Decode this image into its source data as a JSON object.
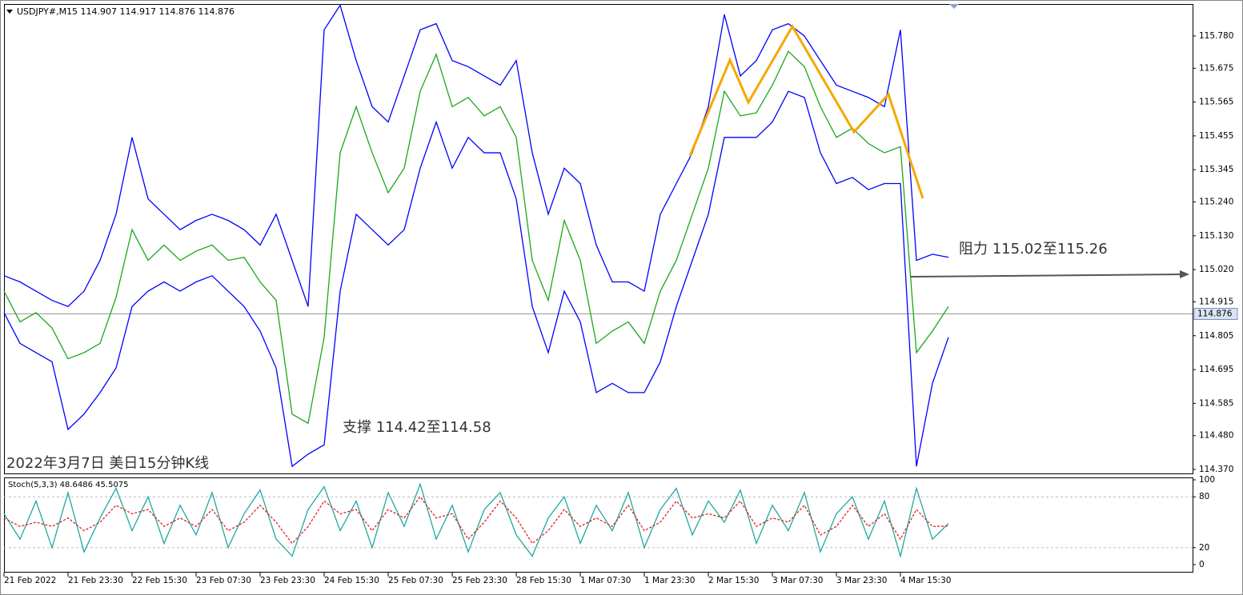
{
  "chart_data": [
    {
      "type": "line",
      "title": "USDJPY#,M15  114.907 114.917 114.876 114.876",
      "annotations": [
        "阻力 115.02至115.26",
        "支撑 114.42至114.58",
        "2022年3月7日 美日15分钟K线"
      ],
      "categories": [
        "21 Feb 2022",
        null,
        null,
        null,
        "21 Feb 23:30",
        null,
        null,
        null,
        "22 Feb 15:30",
        null,
        null,
        null,
        "23 Feb 07:30",
        null,
        null,
        null,
        "23 Feb 23:30",
        null,
        null,
        null,
        "24 Feb 15:30",
        null,
        null,
        null,
        "25 Feb 07:30",
        null,
        null,
        null,
        "25 Feb 23:30",
        null,
        null,
        null,
        "28 Feb 15:30",
        null,
        null,
        null,
        "1 Mar 07:30",
        null,
        null,
        null,
        "1 Mar 23:30",
        null,
        null,
        null,
        "2 Mar 15:30",
        null,
        null,
        null,
        "3 Mar 07:30",
        null,
        null,
        null,
        "3 Mar 23:30",
        null,
        null,
        null,
        "4 Mar 15:30",
        null,
        null,
        null
      ],
      "series": [
        {
          "color": "#1aa81a",
          "values": [
            114.95,
            114.85,
            114.88,
            114.83,
            114.73,
            114.75,
            114.78,
            114.93,
            115.15,
            115.05,
            115.1,
            115.05,
            115.08,
            115.1,
            115.05,
            115.06,
            114.98,
            114.92,
            114.55,
            114.52,
            114.8,
            115.4,
            115.55,
            115.4,
            115.27,
            115.35,
            115.6,
            115.72,
            115.55,
            115.58,
            115.52,
            115.55,
            115.45,
            115.05,
            114.92,
            115.18,
            115.05,
            114.78,
            114.82,
            114.85,
            114.78,
            114.95,
            115.05,
            115.2,
            115.35,
            115.6,
            115.52,
            115.53,
            115.62,
            115.73,
            115.68,
            115.55,
            115.45,
            115.48,
            115.43,
            115.4,
            115.42,
            114.75,
            114.82,
            114.9
          ]
        },
        {
          "color": "#0000ff",
          "values": [
            115.0,
            114.98,
            114.95,
            114.92,
            114.9,
            114.95,
            115.05,
            115.2,
            115.45,
            115.25,
            115.2,
            115.15,
            115.18,
            115.2,
            115.18,
            115.15,
            115.1,
            115.2,
            115.05,
            114.9,
            115.8,
            115.88,
            115.7,
            115.55,
            115.5,
            115.65,
            115.8,
            115.82,
            115.7,
            115.68,
            115.65,
            115.62,
            115.7,
            115.4,
            115.2,
            115.35,
            115.3,
            115.1,
            114.98,
            114.98,
            114.95,
            115.2,
            115.3,
            115.4,
            115.55,
            115.85,
            115.65,
            115.7,
            115.8,
            115.82,
            115.78,
            115.7,
            115.62,
            115.6,
            115.58,
            115.55,
            115.8,
            115.05,
            115.07,
            115.06
          ]
        },
        {
          "color": "#0000ff",
          "values": [
            114.88,
            114.78,
            114.75,
            114.72,
            114.5,
            114.55,
            114.62,
            114.7,
            114.9,
            114.95,
            114.98,
            114.95,
            114.98,
            115.0,
            114.95,
            114.9,
            114.82,
            114.7,
            114.38,
            114.42,
            114.45,
            114.95,
            115.2,
            115.15,
            115.1,
            115.15,
            115.35,
            115.5,
            115.35,
            115.45,
            115.4,
            115.4,
            115.25,
            114.9,
            114.75,
            114.95,
            114.85,
            114.62,
            114.65,
            114.62,
            114.62,
            114.72,
            114.9,
            115.05,
            115.2,
            115.45,
            115.45,
            115.45,
            115.5,
            115.6,
            115.58,
            115.4,
            115.3,
            115.32,
            115.28,
            115.3,
            115.3,
            114.38,
            114.65,
            114.8
          ]
        }
      ],
      "ylim": [
        114.357,
        115.884
      ],
      "yticks": [
        {
          "value": 115.78,
          "label": "115.780"
        },
        {
          "value": 115.675,
          "label": "115.675"
        },
        {
          "value": 115.565,
          "label": "115.565"
        },
        {
          "value": 115.455,
          "label": "115.455"
        },
        {
          "value": 115.345,
          "label": "115.345"
        },
        {
          "value": 115.24,
          "label": "115.240"
        },
        {
          "value": 115.13,
          "label": "115.130"
        },
        {
          "value": 115.02,
          "label": "115.020"
        },
        114.915,
        114.805,
        114.695,
        114.585,
        {
          "value": 114.48,
          "label": "114.480"
        },
        {
          "value": 114.37,
          "label": "114.370"
        }
      ],
      "current_price": 114.876,
      "grid": false
    },
    {
      "type": "line",
      "title": "Stoch(5,3,3) 48.6486 45.5075",
      "series": [
        {
          "color": "#20a8a0",
          "values": [
            60,
            30,
            75,
            20,
            85,
            15,
            55,
            90,
            40,
            80,
            25,
            70,
            35,
            85,
            20,
            60,
            88,
            30,
            10,
            65,
            92,
            40,
            75,
            20,
            85,
            45,
            95,
            30,
            70,
            15,
            65,
            85,
            35,
            10,
            55,
            80,
            25,
            70,
            40,
            85,
            20,
            65,
            90,
            35,
            75,
            50,
            88,
            25,
            70,
            40,
            85,
            15,
            60,
            80,
            30,
            75,
            10,
            90,
            30,
            48.6
          ]
        },
        {
          "color": "#e02020",
          "dashed": true,
          "values": [
            55,
            45,
            50,
            45,
            55,
            40,
            50,
            70,
            60,
            65,
            45,
            55,
            45,
            65,
            40,
            50,
            70,
            50,
            25,
            45,
            75,
            60,
            65,
            40,
            65,
            55,
            80,
            55,
            60,
            30,
            50,
            75,
            55,
            25,
            40,
            65,
            45,
            55,
            45,
            70,
            40,
            50,
            75,
            55,
            60,
            55,
            75,
            45,
            55,
            50,
            70,
            35,
            45,
            70,
            45,
            60,
            30,
            65,
            45,
            45.5
          ]
        }
      ],
      "ylim": [
        0,
        100
      ],
      "yticks": [
        100,
        80,
        20,
        0
      ],
      "levels": [
        80,
        20
      ]
    }
  ]
}
